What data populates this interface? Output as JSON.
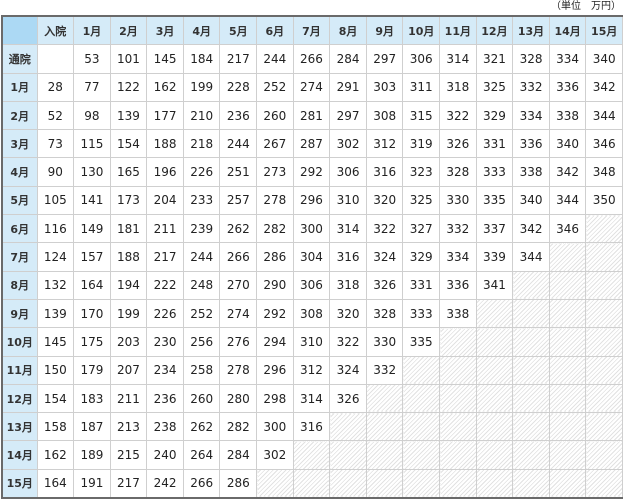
{
  "unit_label": "（単位　万円）",
  "columns": [
    "入院",
    "1月",
    "2月",
    "3月",
    "4月",
    "5月",
    "6月",
    "7月",
    "8月",
    "9月",
    "10月",
    "11月",
    "12月",
    "13月",
    "14月",
    "15月"
  ],
  "rows": [
    {
      "label": "通院",
      "values": [
        "",
        53,
        101,
        145,
        184,
        217,
        244,
        266,
        284,
        297,
        306,
        314,
        321,
        328,
        334,
        340
      ]
    },
    {
      "label": "1月",
      "values": [
        28,
        77,
        122,
        162,
        199,
        228,
        252,
        274,
        291,
        303,
        311,
        318,
        325,
        332,
        336,
        342
      ]
    },
    {
      "label": "2月",
      "values": [
        52,
        98,
        139,
        177,
        210,
        236,
        260,
        281,
        297,
        308,
        315,
        322,
        329,
        334,
        338,
        344
      ]
    },
    {
      "label": "3月",
      "values": [
        73,
        115,
        154,
        188,
        218,
        244,
        267,
        287,
        302,
        312,
        319,
        326,
        331,
        336,
        340,
        346
      ]
    },
    {
      "label": "4月",
      "values": [
        90,
        130,
        165,
        196,
        226,
        251,
        273,
        292,
        306,
        316,
        323,
        328,
        333,
        338,
        342,
        348
      ]
    },
    {
      "label": "5月",
      "values": [
        105,
        141,
        173,
        204,
        233,
        257,
        278,
        296,
        310,
        320,
        325,
        330,
        335,
        340,
        344,
        350
      ]
    },
    {
      "label": "6月",
      "values": [
        116,
        149,
        181,
        211,
        239,
        262,
        282,
        300,
        314,
        322,
        327,
        332,
        337,
        342,
        346
      ]
    },
    {
      "label": "7月",
      "values": [
        124,
        157,
        188,
        217,
        244,
        266,
        286,
        304,
        316,
        324,
        329,
        334,
        339,
        344
      ]
    },
    {
      "label": "8月",
      "values": [
        132,
        164,
        194,
        222,
        248,
        270,
        290,
        306,
        318,
        326,
        331,
        336,
        341
      ]
    },
    {
      "label": "9月",
      "values": [
        139,
        170,
        199,
        226,
        252,
        274,
        292,
        308,
        320,
        328,
        333,
        338
      ]
    },
    {
      "label": "10月",
      "values": [
        145,
        175,
        203,
        230,
        256,
        276,
        294,
        310,
        322,
        330,
        335
      ]
    },
    {
      "label": "11月",
      "values": [
        150,
        179,
        207,
        234,
        258,
        278,
        296,
        312,
        324,
        332
      ]
    },
    {
      "label": "12月",
      "values": [
        154,
        183,
        211,
        236,
        260,
        280,
        298,
        314,
        326
      ]
    },
    {
      "label": "13月",
      "values": [
        158,
        187,
        213,
        238,
        262,
        282,
        300,
        316
      ]
    },
    {
      "label": "14月",
      "values": [
        162,
        189,
        215,
        240,
        264,
        284,
        302
      ]
    },
    {
      "label": "15月",
      "values": [
        164,
        191,
        217,
        242,
        266,
        286
      ]
    }
  ],
  "colors": {
    "header_bg": "#d5ebf8",
    "corner_bg": "#acd9f4",
    "border": "#cfcfcf",
    "outer_border": "#6a6a6a"
  }
}
